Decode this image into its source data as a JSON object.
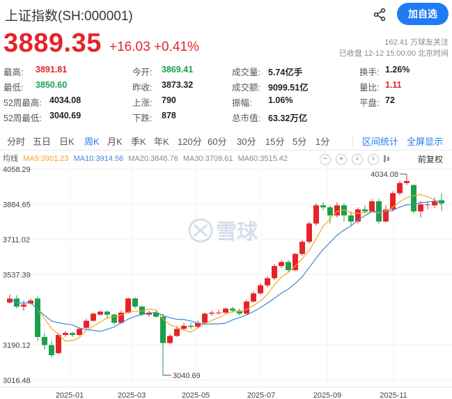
{
  "header": {
    "title": "上证指数(SH:000001)",
    "follow_label": "加自选"
  },
  "quote": {
    "price": "3889.35",
    "change": "+16.03",
    "change_pct": "+0.41%",
    "followers": "162.41 万球友关注",
    "status": "已收盘 12-12 15:00:00 北京时间"
  },
  "stats": [
    {
      "label": "最高:",
      "value": "3891.81",
      "color": "red"
    },
    {
      "label": "今开:",
      "value": "3869.41",
      "color": "green"
    },
    {
      "label": "成交量:",
      "value": "5.74亿手",
      "color": ""
    },
    {
      "label": "换手:",
      "value": "1.26%",
      "color": ""
    },
    {
      "label": "最低:",
      "value": "3850.60",
      "color": "green"
    },
    {
      "label": "昨收:",
      "value": "3873.32",
      "color": ""
    },
    {
      "label": "成交额:",
      "value": "9099.51亿",
      "color": ""
    },
    {
      "label": "量比:",
      "value": "1.11",
      "color": "red"
    },
    {
      "label": "52周最高:",
      "value": "4034.08",
      "color": ""
    },
    {
      "label": "上涨:",
      "value": "790",
      "color": ""
    },
    {
      "label": "振幅:",
      "value": "1.06%",
      "color": ""
    },
    {
      "label": "平盘:",
      "value": "72",
      "color": ""
    },
    {
      "label": "52周最低:",
      "value": "3040.69",
      "color": ""
    },
    {
      "label": "下跌:",
      "value": "878",
      "color": ""
    },
    {
      "label": "总市值:",
      "value": "63.32万亿",
      "color": ""
    }
  ],
  "tabs": [
    {
      "label": "分时",
      "active": false
    },
    {
      "label": "五日",
      "active": false
    },
    {
      "label": "日K",
      "active": false
    },
    {
      "label": "周K",
      "active": true
    },
    {
      "label": "月K",
      "active": false
    },
    {
      "label": "季K",
      "active": false
    },
    {
      "label": "年K",
      "active": false
    },
    {
      "label": "120分",
      "active": false
    },
    {
      "label": "60分",
      "active": false
    },
    {
      "label": "30分",
      "active": false
    },
    {
      "label": "15分",
      "active": false
    },
    {
      "label": "5分",
      "active": false
    },
    {
      "label": "1分",
      "active": false
    }
  ],
  "tab_actions": {
    "interval_stats": "区间统计",
    "fullscreen": "全屏显示"
  },
  "ma_legend": {
    "prefix": "均线",
    "ma5": "MA5:3901.23",
    "ma10": "MA10:3914.56",
    "ma20": "MA20:3846.76",
    "ma30": "MA30:3709.61",
    "ma60": "MA60:3515.42"
  },
  "chart_controls": {
    "minus": "−",
    "plus": "+",
    "left": "‹",
    "right": "›",
    "adjust": "前复权"
  },
  "colors": {
    "up": "#e6232a",
    "down": "#1aa04a",
    "ma5": "#f5a623",
    "ma10": "#3f86d6",
    "accent": "#1f7bf5"
  },
  "watermark": "雪球",
  "chart_data": {
    "type": "candlestick",
    "period": "weekly",
    "y_ticks": [
      "4058.29",
      "3884.65",
      "3711.02",
      "3537.39",
      "3190.12",
      "3016.48"
    ],
    "ylim": [
      3016.48,
      4058.29
    ],
    "x_ticks": [
      "2025-01",
      "2025-03",
      "2025-05",
      "2025-07",
      "2025-09",
      "2025-11"
    ],
    "annotations": {
      "high": "4034.08",
      "low": "3040.69"
    },
    "candles": [
      [
        3400,
        3420,
        3395,
        3440
      ],
      [
        3420,
        3380,
        3370,
        3435
      ],
      [
        3380,
        3390,
        3360,
        3410
      ],
      [
        3395,
        3410,
        3390,
        3420
      ],
      [
        3420,
        3230,
        3210,
        3430
      ],
      [
        3230,
        3190,
        3170,
        3250
      ],
      [
        3190,
        3140,
        3130,
        3210
      ],
      [
        3150,
        3240,
        3145,
        3250
      ],
      [
        3240,
        3250,
        3230,
        3260
      ],
      [
        3250,
        3240,
        3230,
        3255
      ],
      [
        3240,
        3270,
        3235,
        3275
      ],
      [
        3275,
        3310,
        3270,
        3320
      ],
      [
        3310,
        3345,
        3305,
        3350
      ],
      [
        3340,
        3355,
        3335,
        3360
      ],
      [
        3355,
        3340,
        3320,
        3360
      ],
      [
        3340,
        3300,
        3290,
        3345
      ],
      [
        3300,
        3350,
        3295,
        3360
      ],
      [
        3350,
        3420,
        3345,
        3425
      ],
      [
        3420,
        3380,
        3370,
        3425
      ],
      [
        3380,
        3340,
        3335,
        3385
      ],
      [
        3340,
        3350,
        3330,
        3360
      ],
      [
        3350,
        3330,
        3325,
        3360
      ],
      [
        3330,
        3200,
        3040.69,
        3345
      ],
      [
        3200,
        3235,
        3195,
        3245
      ],
      [
        3235,
        3270,
        3230,
        3285
      ],
      [
        3270,
        3285,
        3265,
        3300
      ],
      [
        3285,
        3280,
        3270,
        3300
      ],
      [
        3280,
        3300,
        3275,
        3310
      ],
      [
        3300,
        3345,
        3295,
        3350
      ],
      [
        3345,
        3350,
        3335,
        3360
      ],
      [
        3350,
        3350,
        3340,
        3365
      ],
      [
        3350,
        3370,
        3345,
        3375
      ],
      [
        3370,
        3360,
        3350,
        3380
      ],
      [
        3360,
        3345,
        3335,
        3370
      ],
      [
        3345,
        3405,
        3340,
        3415
      ],
      [
        3405,
        3445,
        3400,
        3455
      ],
      [
        3445,
        3485,
        3440,
        3495
      ],
      [
        3485,
        3520,
        3475,
        3530
      ],
      [
        3520,
        3580,
        3510,
        3590
      ],
      [
        3580,
        3600,
        3570,
        3610
      ],
      [
        3600,
        3560,
        3550,
        3610
      ],
      [
        3560,
        3640,
        3555,
        3645
      ],
      [
        3640,
        3700,
        3630,
        3710
      ],
      [
        3700,
        3790,
        3690,
        3800
      ],
      [
        3790,
        3880,
        3780,
        3890
      ],
      [
        3880,
        3870,
        3855,
        3895
      ],
      [
        3870,
        3830,
        3790,
        3880
      ],
      [
        3830,
        3880,
        3820,
        3895
      ],
      [
        3880,
        3830,
        3800,
        3890
      ],
      [
        3830,
        3800,
        3780,
        3850
      ],
      [
        3800,
        3860,
        3790,
        3870
      ],
      [
        3860,
        3850,
        3840,
        3880
      ],
      [
        3850,
        3900,
        3845,
        3910
      ],
      [
        3900,
        3800,
        3790,
        3910
      ],
      [
        3800,
        3860,
        3795,
        3880
      ],
      [
        3860,
        3940,
        3850,
        3950
      ],
      [
        3940,
        3990,
        3930,
        4000
      ],
      [
        3990,
        4000,
        3980,
        4034.08
      ],
      [
        3980,
        3850,
        3840,
        3985
      ],
      [
        3850,
        3885,
        3820,
        3900
      ],
      [
        3885,
        3885,
        3860,
        3900
      ],
      [
        3880,
        3900,
        3865,
        3920
      ],
      [
        3905,
        3889.35,
        3850.6,
        3940
      ]
    ]
  }
}
